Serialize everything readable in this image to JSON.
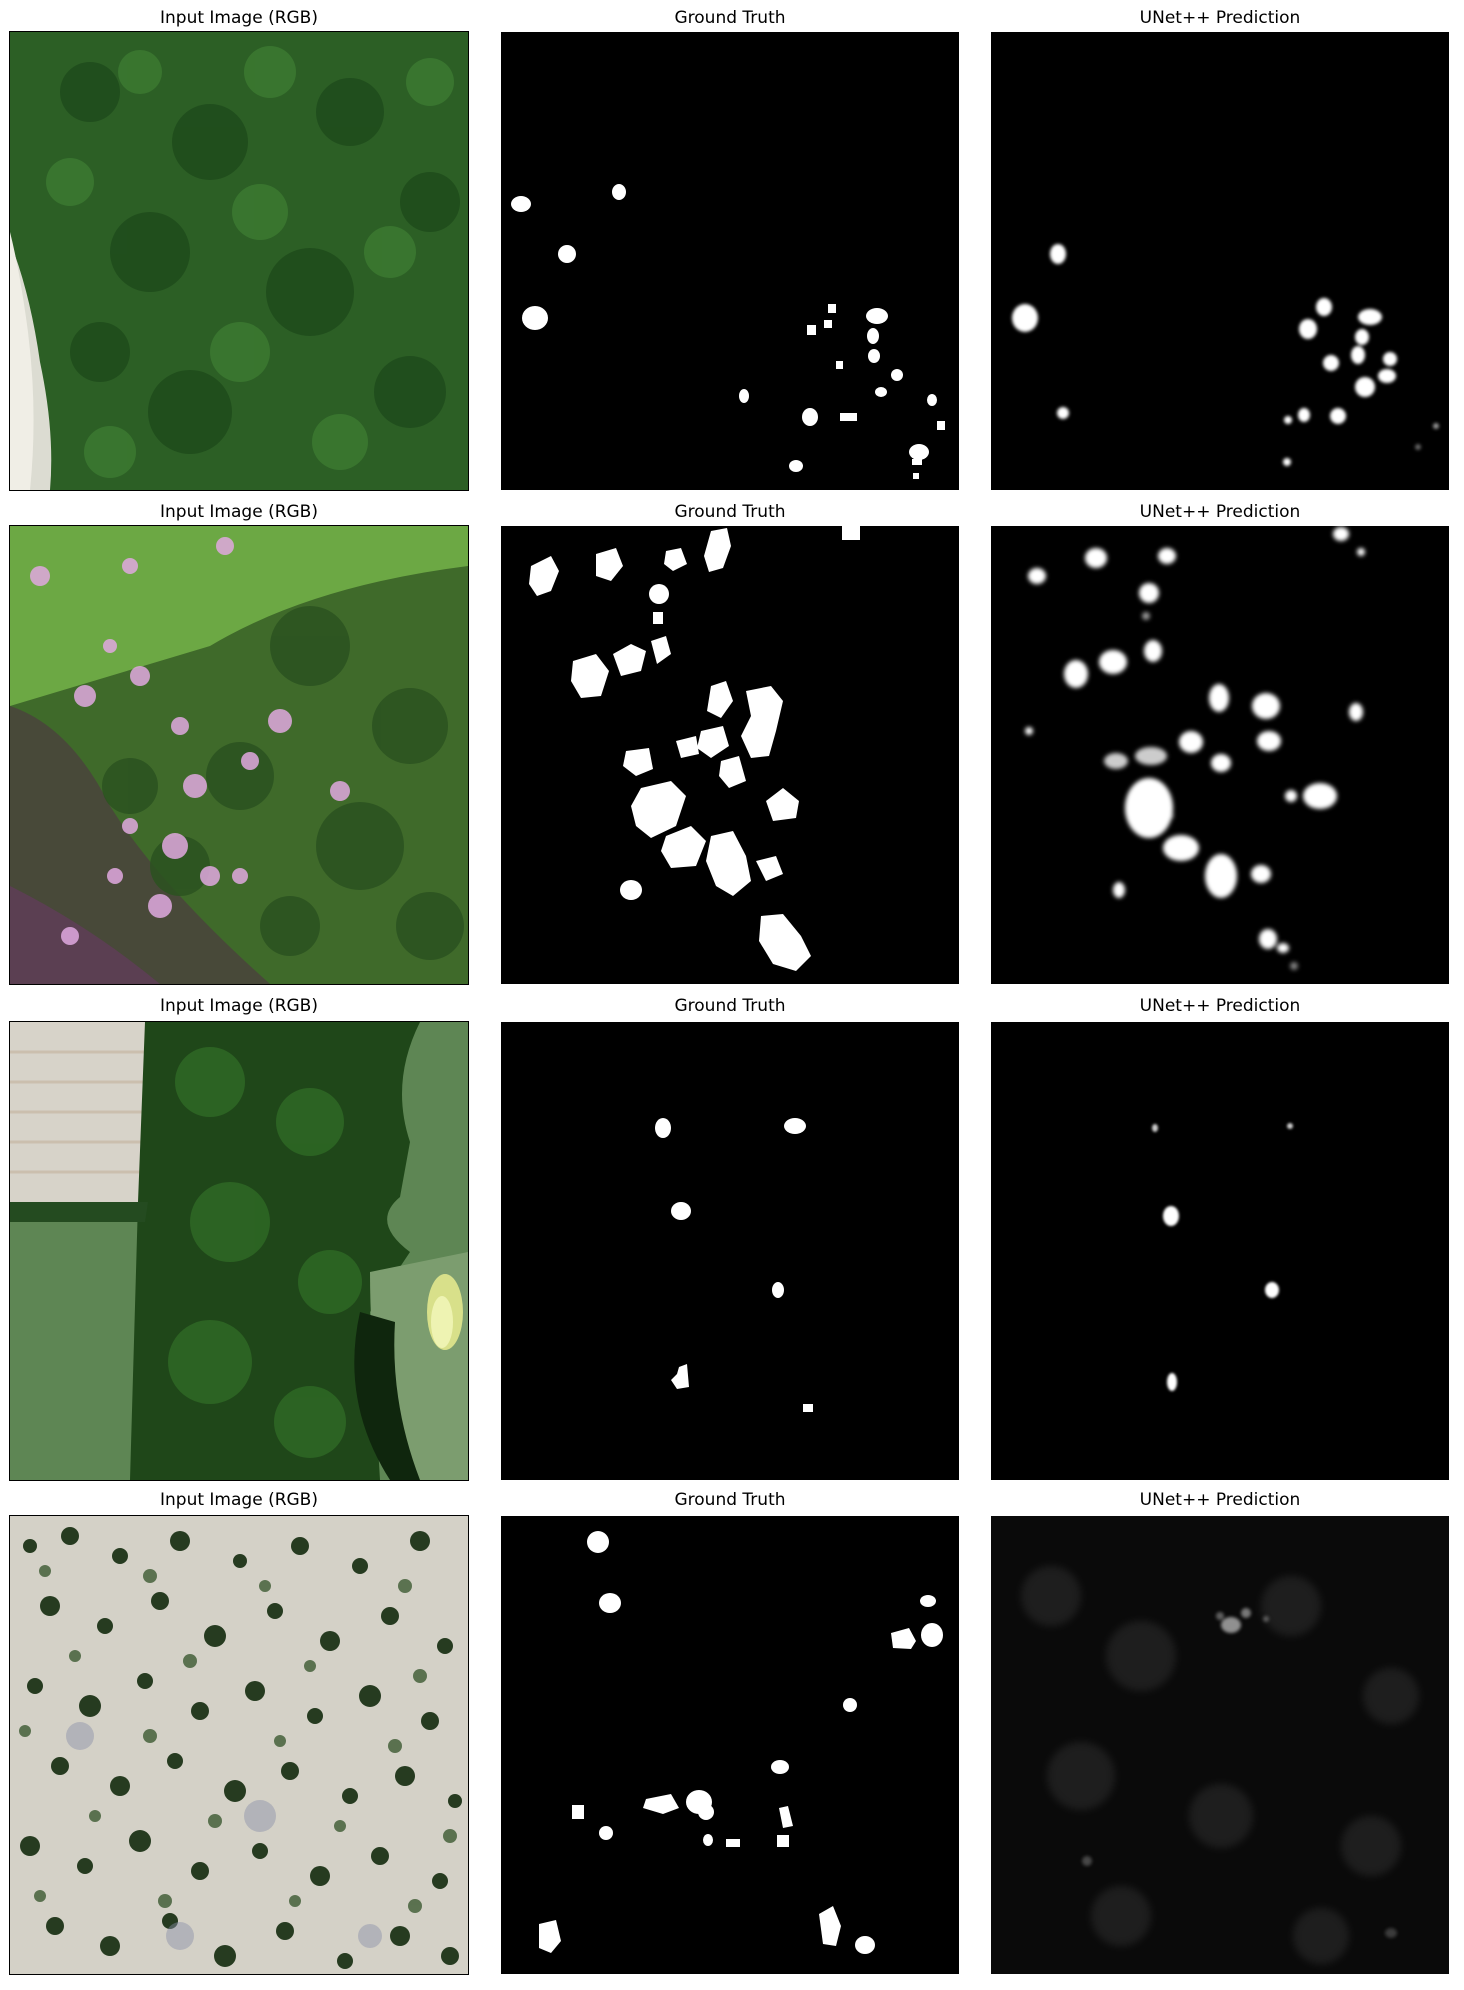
{
  "columns": [
    "Input Image (RGB)",
    "Ground Truth",
    "UNet++ Prediction"
  ],
  "rows": [
    {
      "input_title": "Input Image (RGB)",
      "gt_title": "Ground Truth",
      "pred_title": "UNet++ Prediction"
    },
    {
      "input_title": "Input Image (RGB)",
      "gt_title": "Ground Truth",
      "pred_title": "UNet++ Prediction"
    },
    {
      "input_title": "Input Image (RGB)",
      "gt_title": "Ground Truth",
      "pred_title": "UNet++ Prediction"
    },
    {
      "input_title": "Input Image (RGB)",
      "gt_title": "Ground Truth",
      "pred_title": "UNet++ Prediction"
    }
  ],
  "colors": {
    "background": "#ffffff",
    "mask_background": "#000000",
    "mask_foreground": "#ffffff",
    "forest_dark": "#1d4a1a",
    "forest_mid": "#2f6b26",
    "field_green": "#5f8a55",
    "dead_tree_pink": "#d9a6d6",
    "soil_light": "#d8d4c8"
  }
}
